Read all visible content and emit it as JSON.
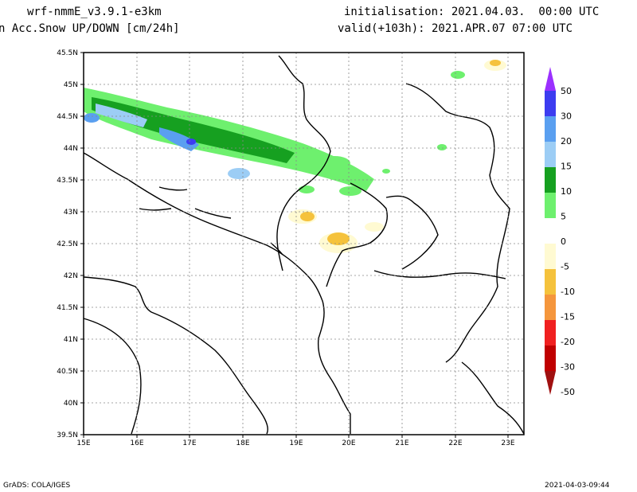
{
  "header": {
    "model": "wrf-nmmE_v3.9.1-e3km",
    "field": "n Acc.Snow UP/DOWN [cm/24h]",
    "init": "initialisation: 2021.04.03.  00:00 UTC",
    "valid": "valid(+103h): 2021.APR.07 07:00 UTC"
  },
  "footer": {
    "credit": "GrADS: COLA/IGES",
    "timestamp": "2021-04-03-09:44"
  },
  "map": {
    "lat_ticks": [
      "45.5N",
      "45N",
      "44.5N",
      "44N",
      "43.5N",
      "43N",
      "42.5N",
      "42N",
      "41.5N",
      "41N",
      "40.5N",
      "40N",
      "39.5N"
    ],
    "lon_ticks": [
      "15E",
      "16E",
      "17E",
      "18E",
      "19E",
      "20E",
      "21E",
      "22E",
      "23E"
    ],
    "lat_range": [
      39.5,
      45.5
    ],
    "lon_range": [
      15,
      23.3
    ],
    "grid": "dotted"
  },
  "colorbar": {
    "labels": [
      "50",
      "30",
      "20",
      "15",
      "10",
      "5",
      "0",
      "-5",
      "-10",
      "-15",
      "-20",
      "-30",
      "-50"
    ],
    "colors": [
      "#9b30ff",
      "#3c3cf0",
      "#5a9ff0",
      "#9ccdf5",
      "#16a020",
      "#6ef06e",
      "#ffffff",
      "#fffad2",
      "#f5c23c",
      "#f5963c",
      "#f02020",
      "#c00000",
      "#a01010"
    ]
  }
}
